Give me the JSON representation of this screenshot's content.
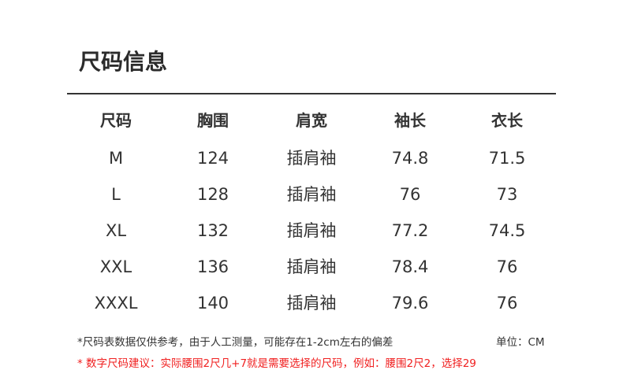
{
  "title": "尺码信息",
  "headers": [
    "尺码",
    "胸围",
    "肩宽",
    "袖长",
    "衣长"
  ],
  "rows": [
    [
      "M",
      "124",
      "插肩袖",
      "74.8",
      "71.5"
    ],
    [
      "L",
      "128",
      "插肩袖",
      "76",
      "73"
    ],
    [
      "XL",
      "132",
      "插肩袖",
      "77.2",
      "74.5"
    ],
    [
      "XXL",
      "136",
      "插肩袖",
      "78.4",
      "76"
    ],
    [
      "XXXL",
      "140",
      "插肩袖",
      "79.6",
      "76"
    ]
  ],
  "note": "*尺码表数据仅供参考，由于人工测量，可能存在1-2cm左右的偏差",
  "unit": "单位：CM",
  "tip": "* 数字尺码建议：实际腰围2尺几+7就是需要选择的尺码，例如：腰围2尺2，选择29",
  "colors": {
    "text": "#333333",
    "tip": "#f02020"
  }
}
